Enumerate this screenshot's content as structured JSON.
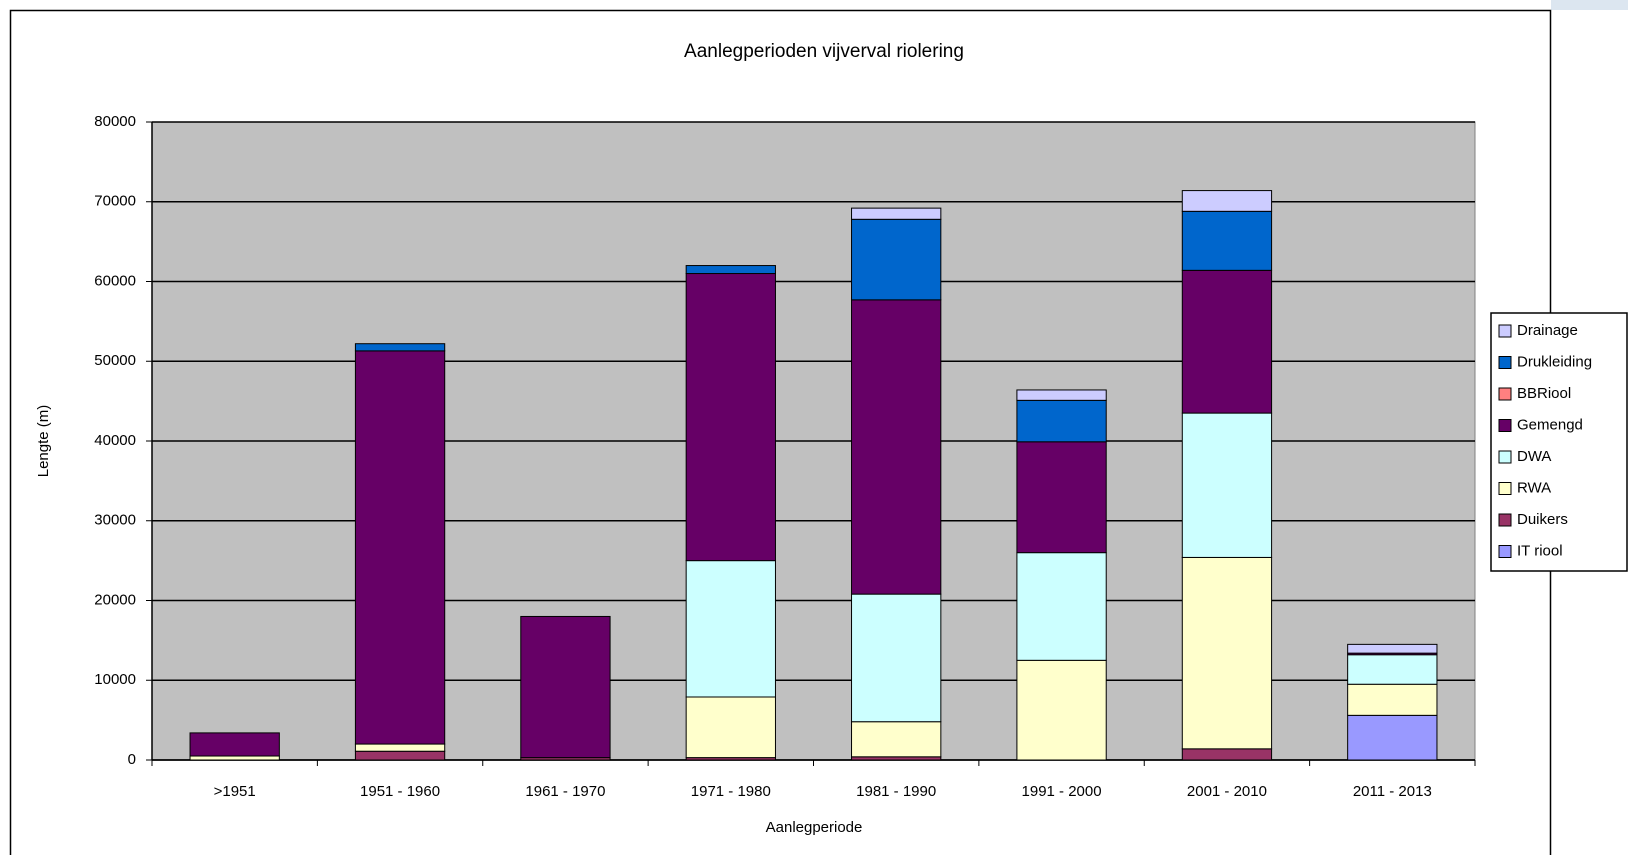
{
  "chart_data": {
    "type": "bar",
    "stacked": true,
    "title": "Aanlegperioden vijverval riolering",
    "x_label": "Aanlegperiode",
    "y_label": "Lengte (m)",
    "categories": [
      ">1951",
      "1951 - 1960",
      "1961 - 1970",
      "1971 - 1980",
      "1981 - 1990",
      "1991 - 2000",
      "2001 - 2010",
      "2011 - 2013"
    ],
    "series": [
      {
        "name": "IT riool",
        "color": "#9999ff",
        "values": [
          0,
          0,
          0,
          0,
          0,
          0,
          0,
          5600
        ]
      },
      {
        "name": "Duikers",
        "color": "#993366",
        "values": [
          0,
          1100,
          300,
          300,
          400,
          0,
          1400,
          0
        ]
      },
      {
        "name": "RWA",
        "color": "#ffffcc",
        "values": [
          500,
          900,
          0,
          7600,
          4400,
          12500,
          24000,
          3900
        ]
      },
      {
        "name": "DWA",
        "color": "#ccffff",
        "values": [
          0,
          0,
          0,
          17100,
          16000,
          13500,
          18100,
          3700
        ]
      },
      {
        "name": "Gemengd",
        "color": "#660066",
        "values": [
          2900,
          49300,
          17700,
          36000,
          36900,
          13900,
          17900,
          200
        ]
      },
      {
        "name": "BBRiool",
        "color": "#ff8080",
        "values": [
          0,
          0,
          0,
          0,
          0,
          0,
          0,
          0
        ]
      },
      {
        "name": "Drukleiding",
        "color": "#0066cc",
        "values": [
          0,
          900,
          0,
          1000,
          10100,
          5200,
          7400,
          0
        ]
      },
      {
        "name": "Drainage",
        "color": "#ccccff",
        "values": [
          0,
          0,
          0,
          0,
          1400,
          1300,
          2600,
          1100
        ]
      }
    ],
    "ylim": [
      0,
      80000
    ],
    "yticks": [
      0,
      10000,
      20000,
      30000,
      40000,
      50000,
      60000,
      70000,
      80000
    ],
    "grid": true,
    "legend": "right",
    "plot_background": "#c0c0c0"
  }
}
